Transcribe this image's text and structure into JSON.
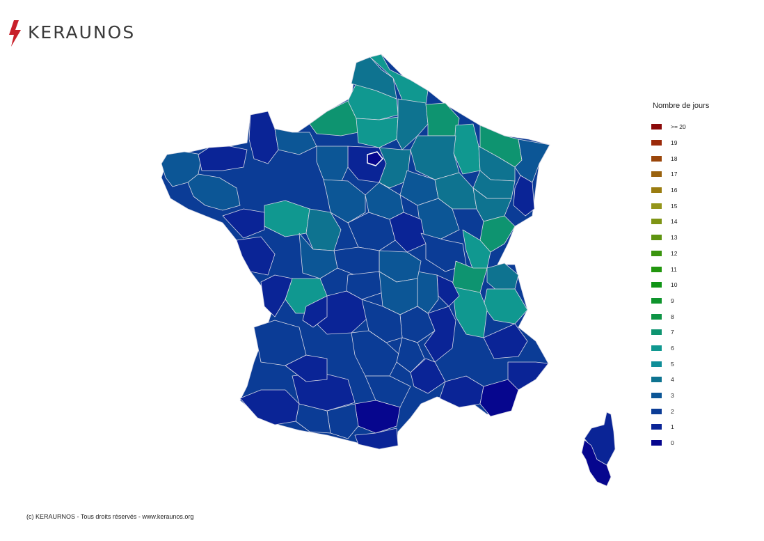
{
  "brand": {
    "name": "KERAUNOS",
    "accent": "#c8202a"
  },
  "legend": {
    "title": "Nombre de jours",
    "items": [
      {
        "label": ">= 20",
        "color": "#8b0a0a"
      },
      {
        "label": "19",
        "color": "#9b2a0a"
      },
      {
        "label": "18",
        "color": "#9a460a"
      },
      {
        "label": "17",
        "color": "#9a620e"
      },
      {
        "label": "16",
        "color": "#9a7c10"
      },
      {
        "label": "15",
        "color": "#94951a"
      },
      {
        "label": "14",
        "color": "#7e9414"
      },
      {
        "label": "13",
        "color": "#5e9410"
      },
      {
        "label": "12",
        "color": "#3a940e"
      },
      {
        "label": "11",
        "color": "#22960e"
      },
      {
        "label": "10",
        "color": "#0f9416"
      },
      {
        "label": "9",
        "color": "#0e942c"
      },
      {
        "label": "8",
        "color": "#0e9445"
      },
      {
        "label": "7",
        "color": "#0e9470"
      },
      {
        "label": "6",
        "color": "#109890"
      },
      {
        "label": "5",
        "color": "#0f8e98"
      },
      {
        "label": "4",
        "color": "#0e7390"
      },
      {
        "label": "3",
        "color": "#0c5696"
      },
      {
        "label": "2",
        "color": "#0b3c96"
      },
      {
        "label": "1",
        "color": "#0a2496"
      },
      {
        "label": "0",
        "color": "#06068e"
      }
    ]
  },
  "footer": "(c) KERAURNOS - Tous droits réservés - www.keraunos.org"
}
